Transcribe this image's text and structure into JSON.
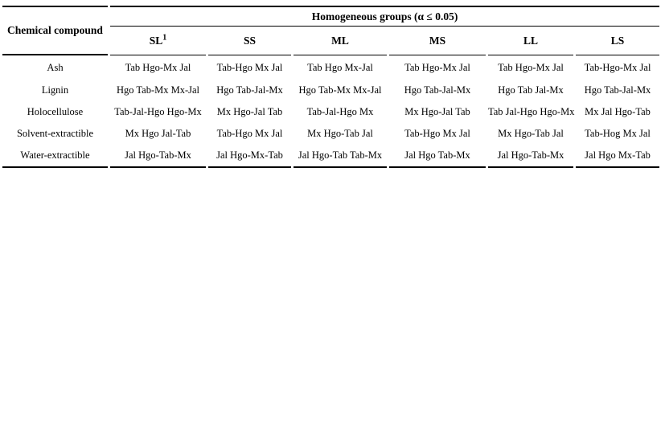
{
  "table": {
    "col1_header": "Chemical compound",
    "group_header": "Homogeneous groups (α ≤ 0.05)",
    "columns": [
      {
        "label": "SL",
        "sup": "1"
      },
      {
        "label": "SS",
        "sup": ""
      },
      {
        "label": "ML",
        "sup": ""
      },
      {
        "label": "MS",
        "sup": ""
      },
      {
        "label": "LL",
        "sup": ""
      },
      {
        "label": "LS",
        "sup": ""
      }
    ],
    "rows": [
      {
        "compound": "Ash",
        "cells": [
          "Tab Hgo-Mx Jal",
          "Tab-Hgo Mx Jal",
          "Tab Hgo Mx-Jal",
          "Tab Hgo-Mx Jal",
          "Tab Hgo-Mx Jal",
          "Tab-Hgo-Mx Jal"
        ]
      },
      {
        "compound": "Lignin",
        "cells": [
          "Hgo Tab-Mx Mx-Jal",
          "Hgo Tab-Jal-Mx",
          "Hgo Tab-Mx Mx-Jal",
          "Hgo Tab-Jal-Mx",
          "Hgo Tab Jal-Mx",
          "Hgo Tab-Jal-Mx"
        ]
      },
      {
        "compound": "Holocellulose",
        "cells": [
          "Tab-Jal-Hgo Hgo-Mx",
          "Mx Hgo-Jal Tab",
          "Tab-Jal-Hgo Mx",
          "Mx Hgo-Jal Tab",
          "Tab Jal-Hgo Hgo-Mx",
          "Mx Jal Hgo-Tab"
        ]
      },
      {
        "compound": "Solvent-extractible",
        "cells": [
          "Mx Hgo Jal-Tab",
          "Tab-Hgo Mx Jal",
          "Mx Hgo-Tab Jal",
          "Tab-Hgo Mx Jal",
          "Mx Hgo-Tab Jal",
          "Tab-Hog Mx Jal"
        ]
      },
      {
        "compound": "Water-extractible",
        "cells": [
          "Jal Hgo-Tab-Mx",
          "Jal Hgo-Mx-Tab",
          "Jal Hgo-Tab Tab-Mx",
          "Jal Hgo Tab-Mx",
          "Jal Hgo-Tab-Mx",
          "Jal Hgo Mx-Tab"
        ]
      }
    ]
  }
}
